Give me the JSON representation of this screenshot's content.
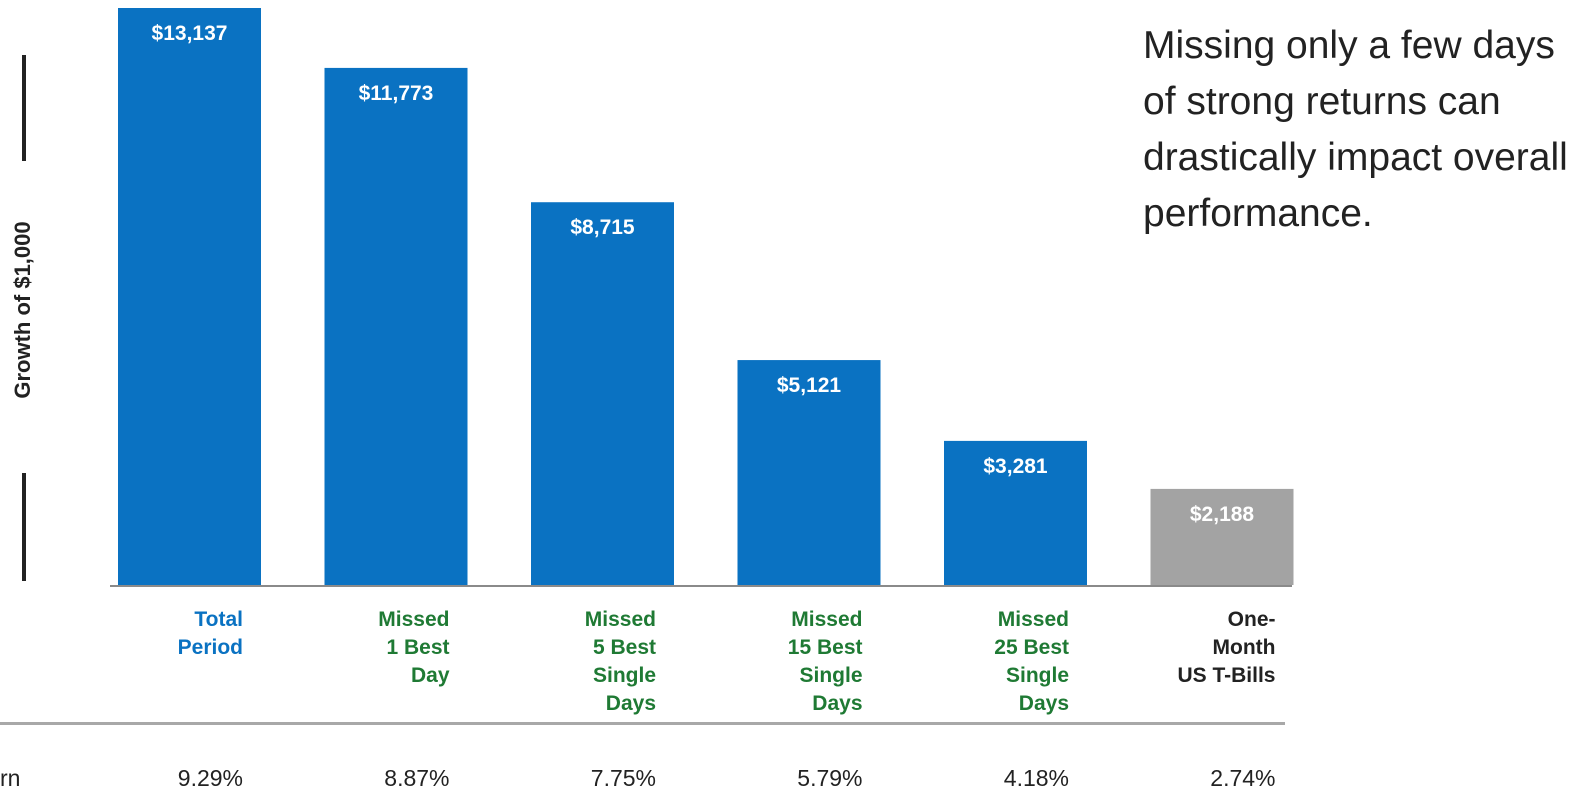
{
  "headline": "Missing only a few days of strong returns can drastically impact overall performance.",
  "chart_data": {
    "type": "bar",
    "ylabel": "Growth of $1,000",
    "ylim": [
      0,
      13137
    ],
    "grid": false,
    "categories": [
      [
        "Total",
        "Period"
      ],
      [
        "Missed",
        "1 Best",
        "Day"
      ],
      [
        "Missed",
        "5 Best",
        "Single",
        "Days"
      ],
      [
        "Missed",
        "15 Best",
        "Single",
        "Days"
      ],
      [
        "Missed",
        "25 Best",
        "Single",
        "Days"
      ],
      [
        "One-",
        "Month",
        "US T-Bills"
      ]
    ],
    "values": [
      13137,
      11773,
      8715,
      5121,
      3281,
      2188
    ],
    "data_labels": [
      "$13,137",
      "$11,773",
      "$8,715",
      "$5,121",
      "$3,281",
      "$2,188"
    ],
    "bar_colors": [
      "#0a72c2",
      "#0a72c2",
      "#0a72c2",
      "#0a72c2",
      "#0a72c2",
      "#a3a3a3"
    ],
    "category_colors": [
      "#0a72c2",
      "#1f7a34",
      "#1f7a34",
      "#1f7a34",
      "#1f7a34",
      "#222222"
    ],
    "returns_label": "rn",
    "returns": [
      "9.29%",
      "8.87%",
      "7.75%",
      "5.79%",
      "4.18%",
      "2.74%"
    ]
  }
}
